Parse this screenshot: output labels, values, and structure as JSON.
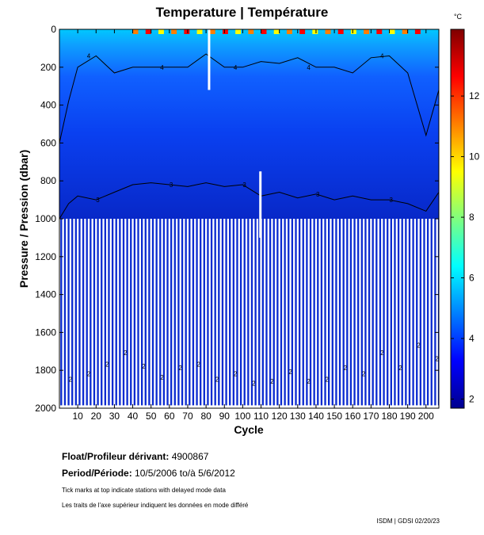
{
  "chart_data": {
    "type": "heatmap",
    "title": "Temperature | Température",
    "xlabel": "Cycle",
    "ylabel": "Pressure / Pression (dbar)",
    "xlim": [
      0,
      207
    ],
    "ylim": [
      0,
      2000
    ],
    "x_ticks": [
      10,
      20,
      30,
      40,
      50,
      60,
      70,
      80,
      90,
      100,
      110,
      120,
      130,
      140,
      150,
      160,
      170,
      180,
      190,
      200
    ],
    "y_ticks": [
      0,
      200,
      400,
      600,
      800,
      1000,
      1200,
      1400,
      1600,
      1800,
      2000
    ],
    "colorbar": {
      "unit": "°C",
      "range": [
        1.7,
        14.2
      ],
      "ticks": [
        2,
        4,
        6,
        8,
        10,
        12
      ],
      "colormap": "jet"
    },
    "contour_labels": [
      "2",
      "3",
      "4"
    ],
    "cmap_stops": [
      "#00008f",
      "#0000ff",
      "#007fff",
      "#00ffff",
      "#7fff7f",
      "#ffff00",
      "#ff7f00",
      "#ff0000",
      "#7f0000"
    ],
    "isotherm_4": {
      "x": [
        0,
        5,
        10,
        20,
        30,
        40,
        50,
        60,
        70,
        80,
        90,
        100,
        110,
        120,
        130,
        140,
        150,
        160,
        170,
        180,
        190,
        200,
        207
      ],
      "y": [
        600,
        380,
        200,
        140,
        230,
        200,
        200,
        200,
        200,
        130,
        200,
        200,
        170,
        180,
        150,
        200,
        200,
        230,
        150,
        140,
        230,
        560,
        320
      ]
    },
    "isotherm_3": {
      "x": [
        0,
        5,
        10,
        20,
        30,
        40,
        50,
        60,
        70,
        80,
        90,
        100,
        110,
        120,
        130,
        140,
        150,
        160,
        170,
        180,
        190,
        200,
        207
      ],
      "y": [
        1000,
        920,
        880,
        900,
        860,
        820,
        810,
        820,
        830,
        810,
        830,
        820,
        880,
        860,
        890,
        870,
        900,
        880,
        900,
        900,
        920,
        960,
        860
      ]
    },
    "isotherm_2_profile_depth": [
      1860,
      1830,
      1780,
      1720,
      1790,
      1850,
      1800,
      1780,
      1860,
      1830,
      1880,
      1870,
      1820,
      1870,
      1860,
      1800,
      1830,
      1720,
      1800,
      1680,
      1750
    ],
    "deep_profiles_stride": 2,
    "gaps": [
      {
        "cycle": 81,
        "from": 0,
        "to": 320
      },
      {
        "cycle": 109,
        "from": 750,
        "to": 1100
      }
    ]
  },
  "float_label": "Float/Profileur dérivant:",
  "float_id": "4900867",
  "period_label": "Period/Période:",
  "period_value": "10/5/2006  to/à  5/6/2012",
  "note_en": "Tick marks at top indicate stations with delayed mode data",
  "note_fr": "Les traits de l'axe supérieur indiquent les données en mode différé",
  "credit": "ISDM | GDSI  02/20/23"
}
